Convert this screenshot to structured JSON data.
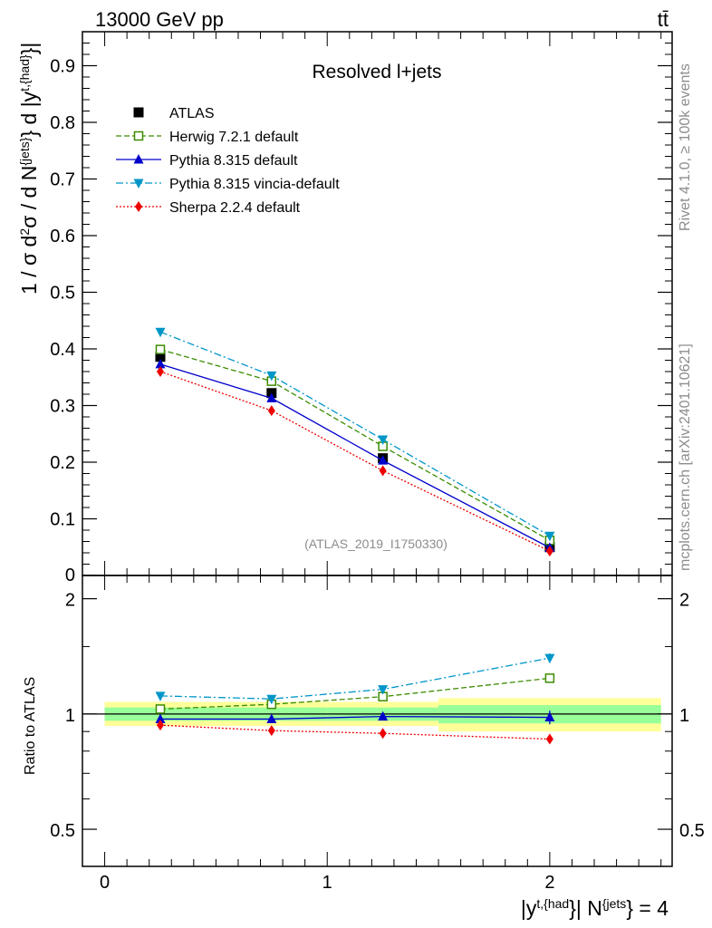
{
  "header": {
    "energy_label": "13000 GeV pp",
    "process_label": "tt̄"
  },
  "side_labels": {
    "rivet": "Rivet 4.1.0, ≥ 100k events",
    "mcplots": "mcplots.cern.ch [arXiv:2401.10621]"
  },
  "chart_data": [
    {
      "id": "main",
      "type": "line",
      "title": "Resolved l+jets",
      "watermark": "(ATLAS_2019_I1750330)",
      "ylabel": "1 / σ d²σ / d N^{jets} d |y^{t,{had}}|",
      "xlabel": "|y^{t,{had}}| N^{jets} = 4",
      "xlim": [
        -0.1,
        2.55
      ],
      "ylim": [
        0,
        0.96
      ],
      "yticks": [
        0,
        0.1,
        0.2,
        0.3,
        0.4,
        0.5,
        0.6,
        0.7,
        0.8,
        0.9
      ],
      "ytick_labels": [
        "0",
        "0.1",
        "0.2",
        "0.3",
        "0.4",
        "0.5",
        "0.6",
        "0.7",
        "0.8",
        "0.9"
      ],
      "x": [
        0.25,
        0.75,
        1.25,
        2.0
      ],
      "series": [
        {
          "name": "ATLAS",
          "color": "#000000",
          "marker": "square-filled",
          "style": "none",
          "values": [
            0.386,
            0.322,
            0.207,
            0.05
          ],
          "errors": [
            0.008,
            0.007,
            0.006,
            0.004
          ]
        },
        {
          "name": "Herwig 7.2.1 default",
          "color": "#3c8c00",
          "marker": "square-open",
          "style": "dashed",
          "values": [
            0.399,
            0.343,
            0.228,
            0.062
          ],
          "errors": [
            0.003,
            0.003,
            0.003,
            0.002
          ]
        },
        {
          "name": "Pythia 8.315 default",
          "color": "#0000cc",
          "marker": "triangle-up",
          "style": "solid",
          "values": [
            0.373,
            0.313,
            0.203,
            0.049
          ],
          "errors": [
            0.003,
            0.003,
            0.003,
            0.002
          ]
        },
        {
          "name": "Pythia 8.315 vincia-default",
          "color": "#0096c8",
          "marker": "triangle-down",
          "style": "dashdot",
          "values": [
            0.43,
            0.353,
            0.24,
            0.07
          ],
          "errors": [
            0.003,
            0.003,
            0.003,
            0.002
          ]
        },
        {
          "name": "Sherpa 2.2.4 default",
          "color": "#ee0000",
          "marker": "diamond",
          "style": "dotted",
          "values": [
            0.36,
            0.291,
            0.185,
            0.043
          ],
          "errors": [
            0.003,
            0.003,
            0.003,
            0.002
          ]
        }
      ]
    },
    {
      "id": "ratio",
      "type": "line",
      "ylabel": "Ratio to ATLAS",
      "ylim": [
        0.4,
        2.3
      ],
      "yscale": "log",
      "yticks": [
        0.5,
        1,
        2
      ],
      "ytick_labels": [
        "0.5",
        "1",
        "2"
      ],
      "xticks": [
        0,
        1,
        2
      ],
      "xtick_labels": [
        "0",
        "1",
        "2"
      ],
      "bins": [
        [
          0,
          0.5
        ],
        [
          0.5,
          1.0
        ],
        [
          1.0,
          1.5
        ],
        [
          1.5,
          2.5
        ]
      ],
      "band_inner": [
        [
          0.96,
          1.04
        ],
        [
          0.96,
          1.04
        ],
        [
          0.96,
          1.04
        ],
        [
          0.945,
          1.055
        ]
      ],
      "band_outer": [
        [
          0.93,
          1.075
        ],
        [
          0.93,
          1.075
        ],
        [
          0.93,
          1.075
        ],
        [
          0.9,
          1.1
        ]
      ],
      "x": [
        0.25,
        0.75,
        1.25,
        2.0
      ],
      "series": [
        {
          "name": "Herwig 7.2.1 default",
          "values": [
            1.03,
            1.06,
            1.11,
            1.24
          ],
          "errors": [
            0.01,
            0.01,
            0.015,
            0.03
          ]
        },
        {
          "name": "Pythia 8.315 default",
          "values": [
            0.97,
            0.97,
            0.985,
            0.98
          ],
          "errors": [
            0.01,
            0.01,
            0.02,
            0.04
          ]
        },
        {
          "name": "Pythia 8.315 vincia-default",
          "values": [
            1.115,
            1.095,
            1.16,
            1.4
          ],
          "errors": [
            0.01,
            0.01,
            0.015,
            0.04
          ]
        },
        {
          "name": "Sherpa 2.2.4 default",
          "values": [
            0.935,
            0.905,
            0.89,
            0.86
          ],
          "errors": [
            0.01,
            0.01,
            0.01,
            0.02
          ]
        }
      ]
    }
  ]
}
